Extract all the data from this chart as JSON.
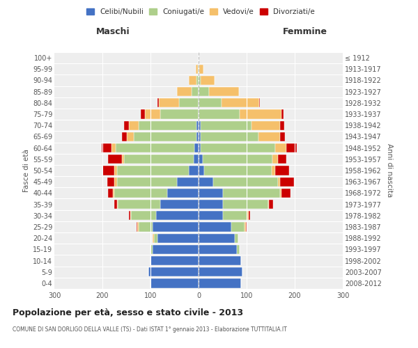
{
  "age_groups": [
    "0-4",
    "5-9",
    "10-14",
    "15-19",
    "20-24",
    "25-29",
    "30-34",
    "35-39",
    "40-44",
    "45-49",
    "50-54",
    "55-59",
    "60-64",
    "65-69",
    "70-74",
    "75-79",
    "80-84",
    "85-89",
    "90-94",
    "95-99",
    "100+"
  ],
  "birth_years": [
    "2008-2012",
    "2003-2007",
    "1998-2002",
    "1993-1997",
    "1988-1992",
    "1983-1987",
    "1978-1982",
    "1973-1977",
    "1968-1972",
    "1963-1967",
    "1958-1962",
    "1953-1957",
    "1948-1952",
    "1943-1947",
    "1938-1942",
    "1933-1937",
    "1928-1932",
    "1923-1927",
    "1918-1922",
    "1913-1917",
    "≤ 1912"
  ],
  "male_celibi": [
    100,
    105,
    100,
    95,
    85,
    95,
    88,
    80,
    65,
    45,
    20,
    10,
    8,
    5,
    5,
    0,
    0,
    0,
    0,
    0,
    0
  ],
  "male_coniugati": [
    0,
    0,
    0,
    5,
    8,
    30,
    52,
    88,
    110,
    125,
    150,
    145,
    165,
    130,
    120,
    80,
    40,
    15,
    5,
    2,
    0
  ],
  "male_vedovi": [
    0,
    0,
    0,
    0,
    2,
    2,
    2,
    2,
    3,
    5,
    5,
    5,
    8,
    15,
    20,
    32,
    42,
    30,
    15,
    4,
    0
  ],
  "male_divorziati": [
    0,
    0,
    0,
    0,
    0,
    2,
    3,
    5,
    10,
    15,
    25,
    28,
    20,
    10,
    10,
    8,
    3,
    0,
    0,
    0,
    0
  ],
  "female_nubili": [
    88,
    92,
    88,
    80,
    75,
    68,
    50,
    50,
    50,
    30,
    12,
    8,
    5,
    5,
    5,
    0,
    0,
    0,
    0,
    0,
    0
  ],
  "female_coniugate": [
    0,
    0,
    0,
    5,
    8,
    28,
    52,
    95,
    120,
    135,
    140,
    145,
    155,
    120,
    105,
    85,
    48,
    22,
    5,
    2,
    0
  ],
  "female_vedove": [
    0,
    0,
    0,
    0,
    0,
    2,
    2,
    2,
    3,
    5,
    8,
    12,
    22,
    45,
    60,
    88,
    78,
    62,
    28,
    8,
    0
  ],
  "female_divorziate": [
    0,
    0,
    0,
    0,
    0,
    2,
    3,
    8,
    18,
    28,
    28,
    18,
    22,
    10,
    8,
    4,
    2,
    0,
    0,
    0,
    0
  ],
  "color_celibi": "#4472C4",
  "color_coniugati": "#AECF8B",
  "color_vedovi": "#F5C06B",
  "color_divorziati": "#CC0000",
  "legend_labels": [
    "Celibi/Nubili",
    "Coniugati/e",
    "Vedovi/e",
    "Divorziati/e"
  ],
  "title": "Popolazione per età, sesso e stato civile - 2013",
  "subtitle": "COMUNE DI SAN DORLIGO DELLA VALLE (TS) - Dati ISTAT 1° gennaio 2013 - Elaborazione TUTTITALIA.IT",
  "label_maschi": "Maschi",
  "label_femmine": "Femmine",
  "ylabel_left": "Fasce di età",
  "ylabel_right": "Anni di nascita",
  "xlim": 300,
  "bg_color": "#eeeeee"
}
